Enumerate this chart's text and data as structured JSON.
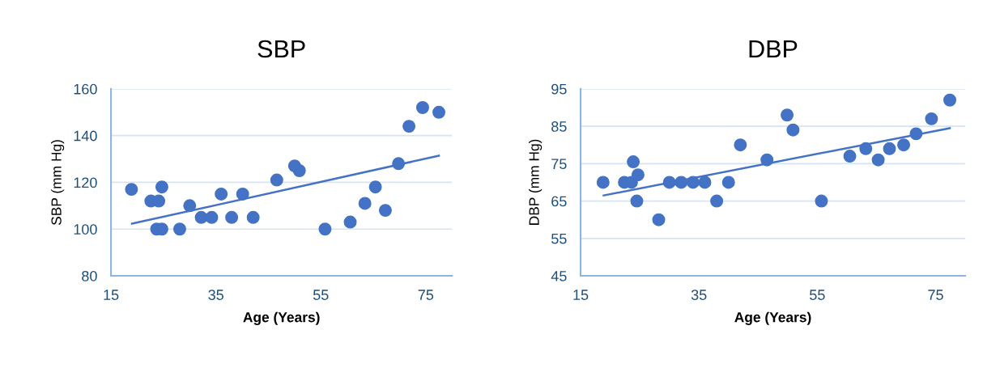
{
  "chart_data": [
    {
      "type": "scatter",
      "title": "SBP",
      "xlabel": "Age (Years)",
      "ylabel": "SBP (mm Hg)",
      "xlim": [
        15,
        80
      ],
      "xticks": [
        15,
        35,
        55,
        75
      ],
      "ylim": [
        80,
        160
      ],
      "yticks": [
        80,
        100,
        120,
        140,
        160
      ],
      "grid": "y",
      "series": [
        {
          "marker": "circle",
          "color": "#4472c4",
          "x": [
            18.9,
            22.6,
            24.1,
            24.7,
            23.7,
            24.7,
            28.1,
            30.0,
            32.2,
            34.2,
            36.0,
            38.0,
            40.1,
            42.1,
            46.6,
            50.0,
            50.9,
            55.8,
            60.6,
            63.4,
            65.4,
            67.3,
            69.8,
            71.8,
            74.4,
            77.5
          ],
          "values": [
            117,
            112,
            112,
            118,
            100,
            100,
            100,
            110,
            105,
            105,
            115,
            105,
            115,
            105,
            121,
            127,
            125,
            100,
            103,
            111,
            118,
            108,
            128,
            144,
            152,
            150
          ]
        },
        {
          "type": "line",
          "color": "#4472c4",
          "x": [
            19,
            77.5
          ],
          "values": [
            102.3,
            131.4
          ]
        }
      ]
    },
    {
      "type": "scatter",
      "title": "DBP",
      "xlabel": "Age (Years)",
      "ylabel": "DBP (mm Hg)",
      "xlim": [
        15,
        80
      ],
      "xticks": [
        15,
        35,
        55,
        75
      ],
      "ylim": [
        45,
        95
      ],
      "yticks": [
        45,
        55,
        65,
        75,
        85,
        95
      ],
      "grid": "y",
      "series": [
        {
          "marker": "circle",
          "color": "#4472c4",
          "x": [
            18.8,
            22.4,
            23.6,
            23.9,
            24.7,
            24.5,
            28.2,
            30.0,
            32.0,
            34.0,
            36.0,
            38.0,
            40.0,
            42.0,
            46.5,
            49.9,
            50.9,
            55.7,
            60.5,
            63.2,
            65.3,
            67.2,
            69.6,
            71.7,
            74.3,
            77.4
          ],
          "values": [
            70,
            70,
            70,
            75.5,
            72,
            65,
            60,
            70,
            70,
            70,
            70,
            65,
            70,
            80,
            76,
            88,
            84,
            65,
            77,
            79,
            76,
            79,
            80,
            83,
            87,
            92
          ]
        },
        {
          "type": "line",
          "color": "#4472c4",
          "x": [
            18.9,
            77.4
          ],
          "values": [
            66.5,
            84.5
          ]
        }
      ]
    }
  ]
}
